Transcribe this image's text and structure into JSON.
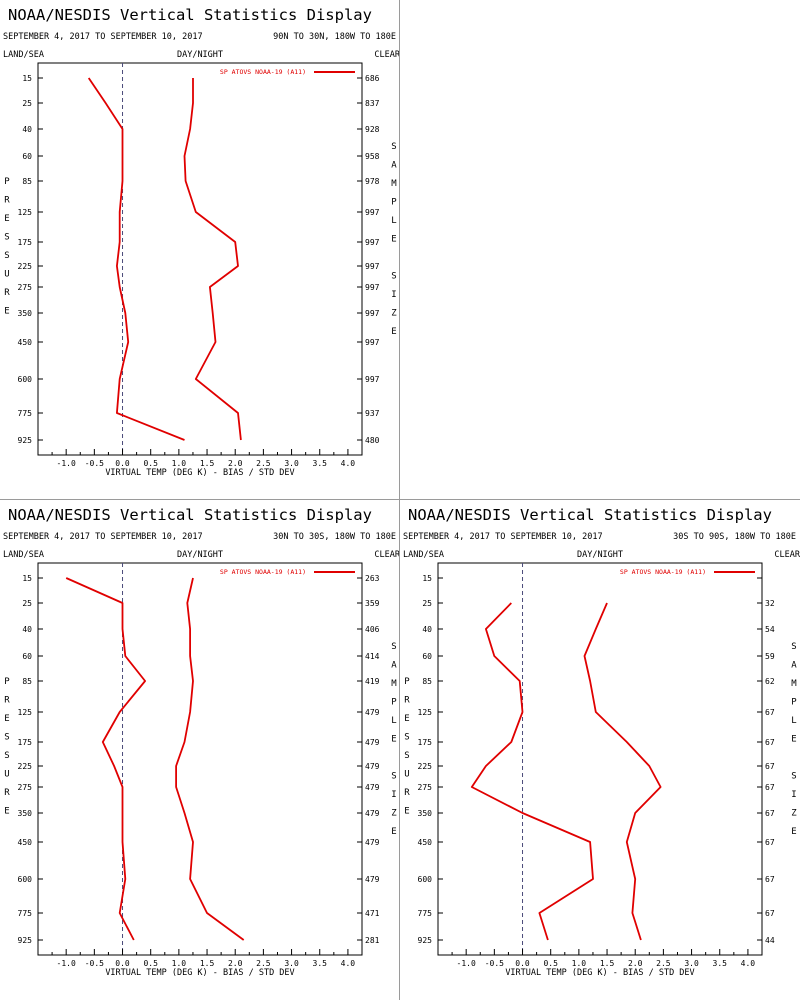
{
  "colors": {
    "series": "#e00000",
    "axis": "#000000",
    "zero_line": "#4a4a7a"
  },
  "panels": [
    {
      "title": "NOAA/NESDIS Vertical Statistics Display",
      "date_range": "SEPTEMBER 4, 2017 TO SEPTEMBER 10, 2017",
      "region": "90N TO 30N, 180W TO 180E",
      "label_land_sea": "LAND/SEA",
      "label_day_night": "DAY/NIGHT",
      "label_clear": "CLEAR",
      "label_left": "PRESSURE",
      "label_right": "SAMPLE SIZE",
      "legend": "SP ATOVS NOAA-19 (A11)",
      "sample_sizes": [
        "686",
        "837",
        "928",
        "958",
        "978",
        "997",
        "997",
        "997",
        "997",
        "997",
        "997",
        "997",
        "937",
        "480"
      ]
    },
    {
      "title": "NOAA/NESDIS Vertical Statistics Display",
      "date_range": "SEPTEMBER 4, 2017 TO SEPTEMBER 10, 2017",
      "region": "30N TO 30S, 180W TO 180E",
      "label_land_sea": "LAND/SEA",
      "label_day_night": "DAY/NIGHT",
      "label_clear": "CLEAR",
      "label_left": "PRESSURE",
      "label_right": "SAMPLE SIZE",
      "legend": "SP ATOVS NOAA-19 (A11)",
      "sample_sizes": [
        "263",
        "359",
        "406",
        "414",
        "419",
        "479",
        "479",
        "479",
        "479",
        "479",
        "479",
        "479",
        "471",
        "281"
      ]
    },
    {
      "title": "NOAA/NESDIS Vertical Statistics Display",
      "date_range": "SEPTEMBER 4, 2017 TO SEPTEMBER 10, 2017",
      "region": "30S TO 90S, 180W TO 180E",
      "label_land_sea": "LAND/SEA",
      "label_day_night": "DAY/NIGHT",
      "label_clear": "CLEAR",
      "label_left": "PRESSURE",
      "label_right": "SAMPLE SIZE",
      "legend": "SP ATOVS NOAA-19 (A11)",
      "sample_sizes": [
        "",
        "32",
        "54",
        "59",
        "62",
        "67",
        "67",
        "67",
        "67",
        "67",
        "67",
        "67",
        "67",
        "44"
      ]
    }
  ],
  "chart_data": [
    {
      "type": "line",
      "xlabel": "VIRTUAL TEMP (DEG K) - BIAS / STD DEV",
      "ylabel": "PRESSURE",
      "xlim": [
        -1.5,
        4.25
      ],
      "x_ticks": [
        "-1.0",
        "-0.5",
        "0.0",
        "0.5",
        "1.0",
        "1.5",
        "2.0",
        "2.5",
        "3.0",
        "3.5",
        "4.0"
      ],
      "y_ticks": [
        "15",
        "25",
        "40",
        "60",
        "85",
        "125",
        "175",
        "225",
        "275",
        "350",
        "450",
        "600",
        "775",
        "925"
      ],
      "grid": false,
      "legend_position": "top-right",
      "series": [
        {
          "name": "SP ATOVS NOAA-19 (A11)",
          "role": "bias",
          "values": [
            -0.6,
            -0.3,
            0.0,
            0.0,
            0.0,
            -0.05,
            -0.05,
            -0.1,
            -0.05,
            0.05,
            0.1,
            -0.05,
            -0.1,
            1.1
          ]
        },
        {
          "name": "SP ATOVS NOAA-19 (A11)",
          "role": "std_dev",
          "values": [
            1.25,
            1.25,
            1.2,
            1.1,
            1.12,
            1.3,
            2.0,
            2.05,
            1.55,
            1.6,
            1.65,
            1.3,
            2.05,
            2.1
          ]
        }
      ]
    },
    {
      "type": "line",
      "xlabel": "VIRTUAL TEMP (DEG K) - BIAS / STD DEV",
      "ylabel": "PRESSURE",
      "xlim": [
        -1.5,
        4.25
      ],
      "x_ticks": [
        "-1.0",
        "-0.5",
        "0.0",
        "0.5",
        "1.0",
        "1.5",
        "2.0",
        "2.5",
        "3.0",
        "3.5",
        "4.0"
      ],
      "y_ticks": [
        "15",
        "25",
        "40",
        "60",
        "85",
        "125",
        "175",
        "225",
        "275",
        "350",
        "450",
        "600",
        "775",
        "925"
      ],
      "grid": false,
      "legend_position": "top-right",
      "series": [
        {
          "name": "SP ATOVS NOAA-19 (A11)",
          "role": "bias",
          "values": [
            -1.0,
            0.0,
            0.0,
            0.05,
            0.4,
            -0.05,
            -0.35,
            -0.15,
            0.0,
            0.0,
            0.0,
            0.05,
            -0.05,
            0.2
          ]
        },
        {
          "name": "SP ATOVS NOAA-19 (A11)",
          "role": "std_dev",
          "values": [
            1.25,
            1.15,
            1.2,
            1.2,
            1.25,
            1.2,
            1.1,
            0.95,
            0.95,
            1.1,
            1.25,
            1.2,
            1.5,
            2.15
          ]
        }
      ]
    },
    {
      "type": "line",
      "xlabel": "VIRTUAL TEMP (DEG K) - BIAS / STD DEV",
      "ylabel": "PRESSURE",
      "xlim": [
        -1.5,
        4.25
      ],
      "x_ticks": [
        "-1.0",
        "-0.5",
        "0.0",
        "0.5",
        "1.0",
        "1.5",
        "2.0",
        "2.5",
        "3.0",
        "3.5",
        "4.0"
      ],
      "y_ticks": [
        "15",
        "25",
        "40",
        "60",
        "85",
        "125",
        "175",
        "225",
        "275",
        "350",
        "450",
        "600",
        "775",
        "925"
      ],
      "grid": false,
      "legend_position": "top-right",
      "series": [
        {
          "name": "SP ATOVS NOAA-19 (A11)",
          "role": "bias",
          "levels": [
            "25",
            "40",
            "60",
            "85",
            "125",
            "175",
            "225",
            "275",
            "350",
            "450",
            "600",
            "775",
            "925"
          ],
          "values": [
            -0.2,
            -0.65,
            -0.5,
            -0.05,
            0.0,
            -0.2,
            -0.65,
            -0.9,
            0.0,
            1.2,
            1.25,
            0.3,
            0.45
          ]
        },
        {
          "name": "SP ATOVS NOAA-19 (A11)",
          "role": "std_dev",
          "levels": [
            "25",
            "40",
            "60",
            "85",
            "125",
            "175",
            "225",
            "275",
            "350",
            "450",
            "600",
            "775",
            "925"
          ],
          "values": [
            1.5,
            1.3,
            1.1,
            1.2,
            1.3,
            1.85,
            2.25,
            2.45,
            2.0,
            1.85,
            2.0,
            1.95,
            2.1
          ]
        }
      ]
    }
  ]
}
